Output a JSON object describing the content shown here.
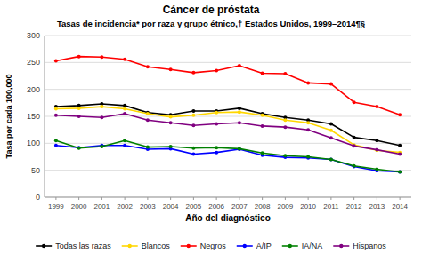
{
  "chart_data": {
    "type": "line",
    "title": "Cáncer de próstata",
    "subtitle": "Tasas de incidencia* por raza y grupo étnico,† Estados Unidos, 1999–2014¶§",
    "xlabel": "Año del diagnóstico",
    "ylabel": "Tasa por cada 100,000",
    "x": [
      1999,
      2000,
      2001,
      2002,
      2003,
      2004,
      2005,
      2006,
      2007,
      2008,
      2009,
      2010,
      2011,
      2012,
      2013,
      2014
    ],
    "series": [
      {
        "name": "Todas las razas",
        "color": "#000000",
        "values": [
          168,
          170,
          173,
          170,
          157,
          153,
          160,
          160,
          165,
          155,
          148,
          143,
          136,
          111,
          105,
          96
        ]
      },
      {
        "name": "Blancos",
        "color": "#FFD700",
        "values": [
          164,
          165,
          168,
          164,
          155,
          149,
          152,
          157,
          158,
          152,
          143,
          138,
          124,
          97,
          87,
          83
        ]
      },
      {
        "name": "Negros",
        "color": "#FF0000",
        "values": [
          253,
          261,
          260,
          256,
          242,
          237,
          231,
          235,
          244,
          230,
          229,
          212,
          210,
          176,
          168,
          153
        ]
      },
      {
        "name": "A/IP",
        "color": "#0000FF",
        "values": [
          96,
          92,
          96,
          96,
          89,
          90,
          80,
          83,
          89,
          78,
          74,
          73,
          70,
          57,
          49,
          47
        ]
      },
      {
        "name": "IA/NA",
        "color": "#008000",
        "values": [
          105,
          91,
          94,
          105,
          93,
          94,
          91,
          92,
          90,
          82,
          77,
          75,
          70,
          58,
          52,
          47
        ]
      },
      {
        "name": "Hispanos",
        "color": "#800080",
        "values": [
          152,
          150,
          148,
          155,
          143,
          138,
          133,
          136,
          138,
          132,
          130,
          125,
          110,
          95,
          88,
          80
        ]
      }
    ],
    "xlim": [
      1998.5,
      2014.5
    ],
    "xticks": [
      1999,
      2000,
      2001,
      2002,
      2003,
      2004,
      2005,
      2006,
      2007,
      2008,
      2009,
      2010,
      2011,
      2012,
      2013,
      2014
    ],
    "ylim": [
      0,
      300
    ],
    "yticks": [
      0,
      50,
      100,
      150,
      200,
      250,
      300
    ],
    "grid": true,
    "legend": "bottom",
    "marker": "circle",
    "line_style": "solid"
  }
}
